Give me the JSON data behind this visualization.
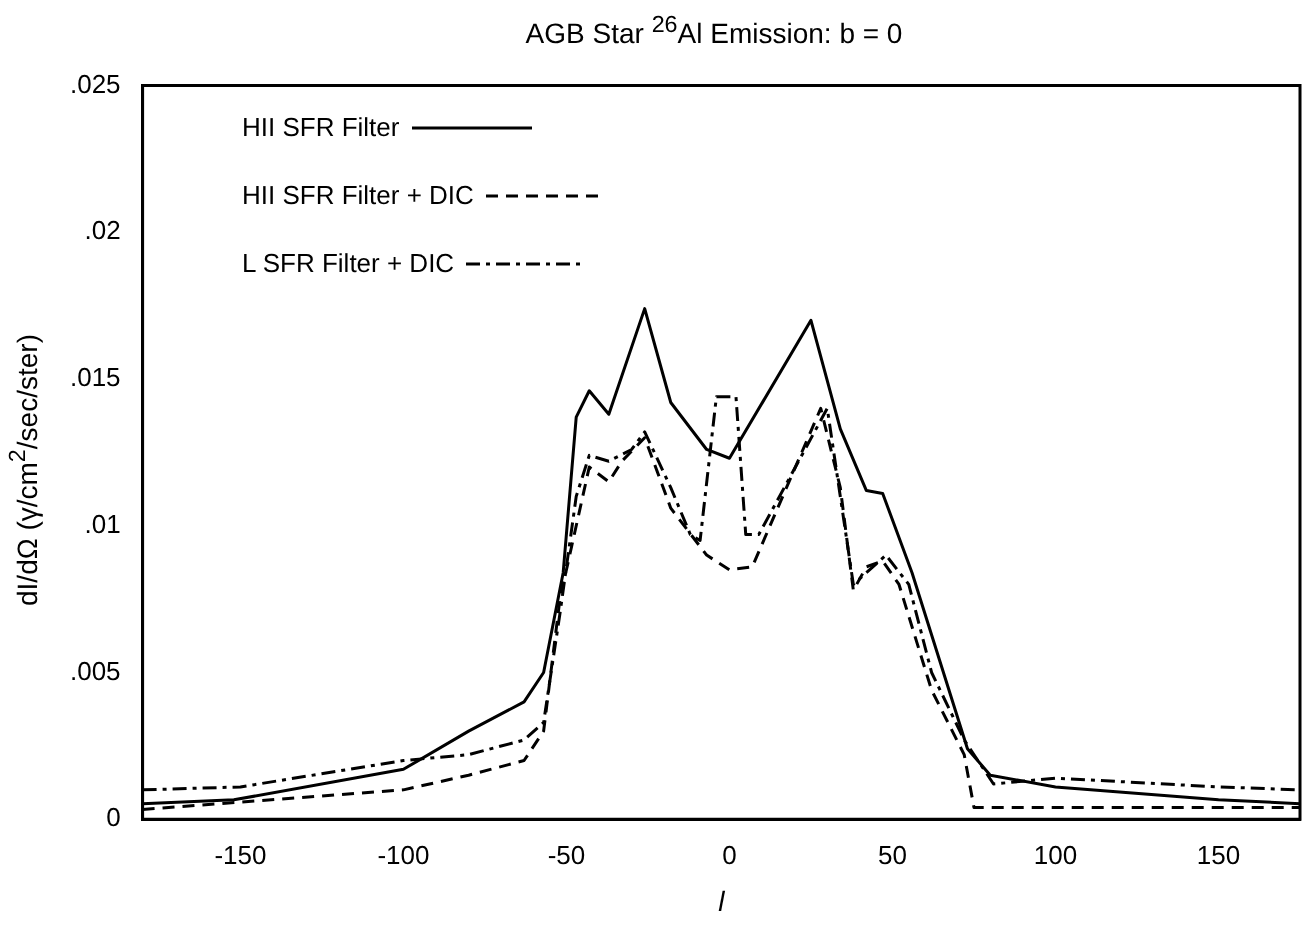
{
  "chart_data": {
    "type": "line",
    "title": "AGB Star $^{26}$Al Emission: b = 0",
    "xlabel": "l",
    "ylabel": "dI/dΩ (γ/cm$^{2}$/sec/ster)",
    "xlim": [
      -180,
      175
    ],
    "xticks": [
      -150,
      -100,
      -50,
      0,
      50,
      100,
      150
    ],
    "ylim": [
      0,
      0.025
    ],
    "yticks": [
      {
        "value": 0,
        "label": "0"
      },
      {
        "value": 0.005,
        "label": ".005"
      },
      {
        "value": 0.01,
        "label": ".01"
      },
      {
        "value": 0.015,
        "label": ".015"
      },
      {
        "value": 0.02,
        "label": ".02"
      },
      {
        "value": 0.025,
        "label": ".025"
      }
    ],
    "grid": false,
    "legend": "top left",
    "marker": "none",
    "series": [
      {
        "name": "HII SFR Filter",
        "color": "#000000",
        "line_style": "solid",
        "x": [
          -180,
          -152,
          -100,
          -80,
          -63,
          -57,
          -51,
          -47,
          -43,
          -37,
          -26,
          -18,
          -7,
          0,
          25,
          34,
          42,
          47,
          56,
          73,
          80,
          100,
          150,
          175
        ],
        "values": [
          0.00053,
          0.00066,
          0.0017,
          0.003,
          0.004,
          0.005,
          0.0084,
          0.0137,
          0.0146,
          0.0138,
          0.0174,
          0.0142,
          0.0126,
          0.0123,
          0.017,
          0.0133,
          0.0112,
          0.0111,
          0.0084,
          0.0024,
          0.0015,
          0.0011,
          0.00066,
          0.00053
        ]
      },
      {
        "name": "HII SFR Filter + DIC",
        "color": "#000000",
        "line_style": "dashed",
        "x": [
          -180,
          -100,
          -80,
          -63,
          -57,
          -52,
          -47,
          -43,
          -37,
          -33,
          -26,
          -18,
          -7,
          0,
          7,
          28,
          34,
          38,
          42,
          47,
          52,
          62,
          72,
          75,
          100,
          150,
          175
        ],
        "values": [
          0.00033,
          0.001,
          0.0015,
          0.002,
          0.003,
          0.0075,
          0.01,
          0.012,
          0.0115,
          0.0122,
          0.013,
          0.0106,
          0.009,
          0.0085,
          0.0086,
          0.014,
          0.0113,
          0.0078,
          0.0086,
          0.0088,
          0.008,
          0.0044,
          0.0022,
          0.0004,
          0.0004,
          0.0004,
          0.0004
        ]
      },
      {
        "name": "L SFR Filter + DIC",
        "color": "#000000",
        "line_style": "dashdot",
        "x": [
          -180,
          -150,
          -100,
          -80,
          -63,
          -57,
          -52,
          -47,
          -43,
          -37,
          -30,
          -26,
          -18,
          -12,
          -9,
          -4,
          0,
          2,
          5,
          9,
          30,
          38,
          48,
          55,
          62,
          72,
          81,
          100,
          150,
          175
        ],
        "values": [
          0.001,
          0.0011,
          0.002,
          0.0022,
          0.0027,
          0.0033,
          0.007,
          0.011,
          0.0124,
          0.0122,
          0.0126,
          0.0132,
          0.0113,
          0.0097,
          0.0095,
          0.0144,
          0.0144,
          0.0144,
          0.0097,
          0.0097,
          0.014,
          0.008,
          0.009,
          0.008,
          0.005,
          0.0027,
          0.0012,
          0.0014,
          0.0011,
          0.001
        ]
      }
    ]
  }
}
